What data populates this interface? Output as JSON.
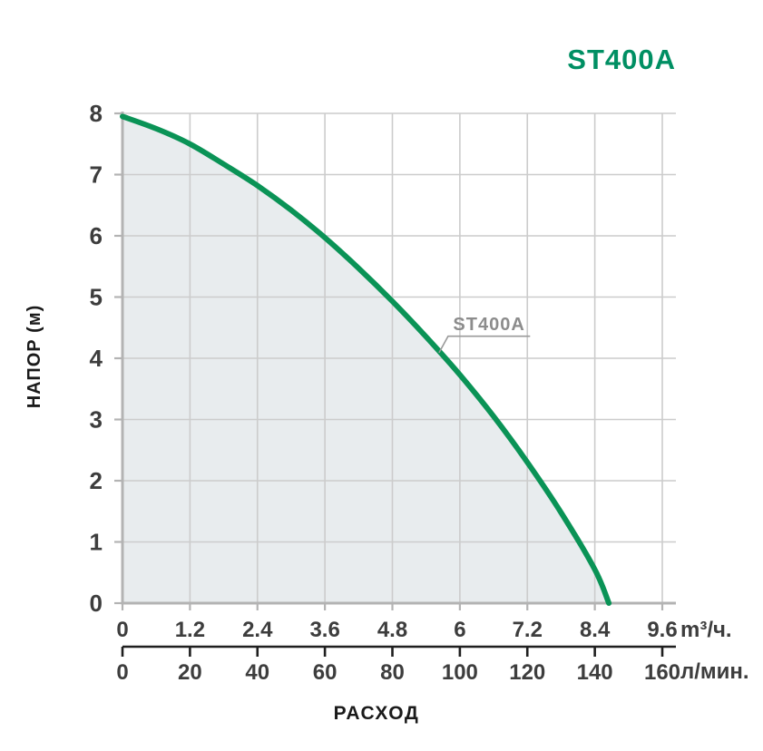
{
  "chart_data": {
    "type": "area",
    "title": "ST400A",
    "xlabel": "РАСХОД",
    "ylabel": "НАПОР (м)",
    "legend": "none",
    "grid": "on",
    "x_axis_primary": {
      "unit": "m³/ч.",
      "min": 0,
      "max": 9.6,
      "step": 1.2,
      "tick_labels": [
        "0",
        "1.2",
        "2.4",
        "3.6",
        "4.8",
        "6",
        "7.2",
        "8.4",
        "9.6"
      ]
    },
    "x_axis_secondary": {
      "unit": "л/мин.",
      "min": 0,
      "max": 160,
      "step": 20,
      "tick_labels": [
        "0",
        "20",
        "40",
        "60",
        "80",
        "100",
        "120",
        "140",
        "160"
      ]
    },
    "y_axis": {
      "min": 0,
      "max": 8,
      "step": 1,
      "tick_labels": [
        "0",
        "1",
        "2",
        "3",
        "4",
        "5",
        "6",
        "7",
        "8"
      ]
    },
    "series": [
      {
        "name": "ST400A",
        "points": [
          [
            0,
            7.95
          ],
          [
            0.6,
            7.75
          ],
          [
            1.2,
            7.5
          ],
          [
            1.8,
            7.17
          ],
          [
            2.4,
            6.82
          ],
          [
            3.0,
            6.42
          ],
          [
            3.6,
            5.97
          ],
          [
            4.2,
            5.47
          ],
          [
            4.8,
            4.93
          ],
          [
            5.4,
            4.35
          ],
          [
            6.0,
            3.73
          ],
          [
            6.6,
            3.05
          ],
          [
            7.2,
            2.3
          ],
          [
            7.8,
            1.48
          ],
          [
            8.4,
            0.55
          ],
          [
            8.65,
            0
          ]
        ]
      }
    ],
    "annotation": {
      "text": "ST400A",
      "anchor": [
        5.63,
        4.09
      ],
      "elbow": [
        5.79,
        4.36
      ],
      "underline_end_x": 7.25
    },
    "colors": {
      "curve": "#0A9356",
      "title": "#008F63",
      "fill": "#E8ECEE",
      "grid": "#CCCCCC",
      "axis": "#B3B3B3",
      "tick_text": "#3D3D3D",
      "secondary_axis": "#1F1F1F",
      "axis_title_text": "#1A1A1A",
      "annotation_text": "#8C8C8C",
      "annotation_line": "#9A9A9A"
    }
  }
}
